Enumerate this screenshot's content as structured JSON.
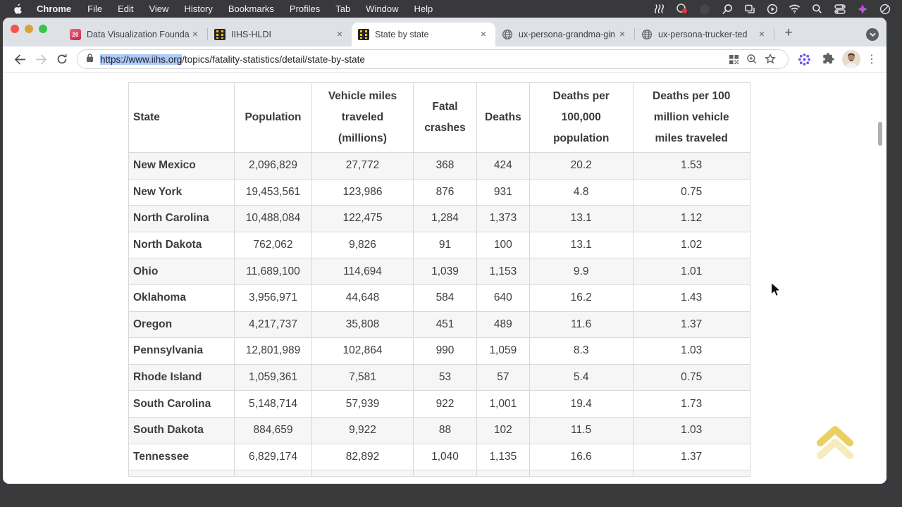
{
  "menu_bar": {
    "items": [
      "Chrome",
      "File",
      "Edit",
      "View",
      "History",
      "Bookmarks",
      "Profiles",
      "Tab",
      "Window",
      "Help"
    ]
  },
  "tabs": [
    {
      "label": "Data Visualization Founda",
      "icon": "calendar-20-icon",
      "close": "×"
    },
    {
      "label": "IIHS-HLDI",
      "icon": "iihs-road-icon",
      "close": "×"
    },
    {
      "label": "State by state",
      "icon": "iihs-road-icon",
      "close": "×",
      "active": true
    },
    {
      "label": "ux-persona-grandma-gin",
      "icon": "globe-icon",
      "close": "×"
    },
    {
      "label": "ux-persona-trucker-ted",
      "icon": "globe-icon",
      "close": "×"
    }
  ],
  "tab_strip": {
    "new_tab_label": "+"
  },
  "toolbar": {
    "url": "https://www.iihs.org/topics/fatality-statistics/detail/state-by-state",
    "url_selected": "https://www.iihs.org",
    "url_rest": "/topics/fatality-statistics/detail/state-by-state",
    "menu_dots": "⋮"
  },
  "table": {
    "headers": [
      "State",
      "Population",
      "Vehicle miles traveled (millions)",
      "Fatal crashes",
      "Deaths",
      "Deaths per 100,000 population",
      "Deaths per 100 million vehicle miles traveled"
    ],
    "rows": [
      [
        "New Mexico",
        "2,096,829",
        "27,772",
        "368",
        "424",
        "20.2",
        "1.53"
      ],
      [
        "New York",
        "19,453,561",
        "123,986",
        "876",
        "931",
        "4.8",
        "0.75"
      ],
      [
        "North Carolina",
        "10,488,084",
        "122,475",
        "1,284",
        "1,373",
        "13.1",
        "1.12"
      ],
      [
        "North Dakota",
        "762,062",
        "9,826",
        "91",
        "100",
        "13.1",
        "1.02"
      ],
      [
        "Ohio",
        "11,689,100",
        "114,694",
        "1,039",
        "1,153",
        "9.9",
        "1.01"
      ],
      [
        "Oklahoma",
        "3,956,971",
        "44,648",
        "584",
        "640",
        "16.2",
        "1.43"
      ],
      [
        "Oregon",
        "4,217,737",
        "35,808",
        "451",
        "489",
        "11.6",
        "1.37"
      ],
      [
        "Pennsylvania",
        "12,801,989",
        "102,864",
        "990",
        "1,059",
        "8.3",
        "1.03"
      ],
      [
        "Rhode Island",
        "1,059,361",
        "7,581",
        "53",
        "57",
        "5.4",
        "0.75"
      ],
      [
        "South Carolina",
        "5,148,714",
        "57,939",
        "922",
        "1,001",
        "19.4",
        "1.73"
      ],
      [
        "South Dakota",
        "884,659",
        "9,922",
        "88",
        "102",
        "11.5",
        "1.03"
      ],
      [
        "Tennessee",
        "6,829,174",
        "82,892",
        "1,040",
        "1,135",
        "16.6",
        "1.37"
      ]
    ]
  },
  "colors": {
    "accent_selection": "#aecbfa",
    "alt_row": "#f6f6f7",
    "scrolltop_yellow": "#ecd25f",
    "menubar_bg": "#39393b"
  }
}
